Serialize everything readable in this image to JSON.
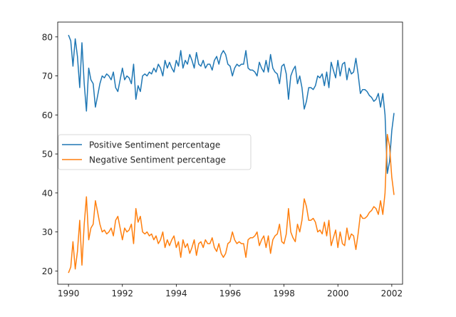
{
  "chart_data": {
    "type": "line",
    "title": "",
    "xlabel": "",
    "ylabel": "",
    "xlim": [
      1989.6,
      2002.4
    ],
    "ylim": [
      16.6,
      83.8
    ],
    "x_ticks": [
      "1990",
      "1992",
      "1994",
      "1996",
      "1998",
      "2000",
      "2002"
    ],
    "y_ticks": [
      "20",
      "30",
      "40",
      "50",
      "60",
      "70",
      "80"
    ],
    "grid": false,
    "legend_placement": "center-left",
    "x": [
      "1990-01",
      "1990-02",
      "1990-03",
      "1990-04",
      "1990-05",
      "1990-06",
      "1990-07",
      "1990-08",
      "1990-09",
      "1990-10",
      "1990-11",
      "1990-12",
      "1991-01",
      "1991-02",
      "1991-03",
      "1991-04",
      "1991-05",
      "1991-06",
      "1991-07",
      "1991-08",
      "1991-09",
      "1991-10",
      "1991-11",
      "1991-12",
      "1992-01",
      "1992-02",
      "1992-03",
      "1992-04",
      "1992-05",
      "1992-06",
      "1992-07",
      "1992-08",
      "1992-09",
      "1992-10",
      "1992-11",
      "1992-12",
      "1993-01",
      "1993-02",
      "1993-03",
      "1993-04",
      "1993-05",
      "1993-06",
      "1993-07",
      "1993-08",
      "1993-09",
      "1993-10",
      "1993-11",
      "1993-12",
      "1994-01",
      "1994-02",
      "1994-03",
      "1994-04",
      "1994-05",
      "1994-06",
      "1994-07",
      "1994-08",
      "1994-09",
      "1994-10",
      "1994-11",
      "1994-12",
      "1995-01",
      "1995-02",
      "1995-03",
      "1995-04",
      "1995-05",
      "1995-06",
      "1995-07",
      "1995-08",
      "1995-09",
      "1995-10",
      "1995-11",
      "1995-12",
      "1996-01",
      "1996-02",
      "1996-03",
      "1996-04",
      "1996-05",
      "1996-06",
      "1996-07",
      "1996-08",
      "1996-09",
      "1996-10",
      "1996-11",
      "1996-12",
      "1997-01",
      "1997-02",
      "1997-03",
      "1997-04",
      "1997-05",
      "1997-06",
      "1997-07",
      "1997-08",
      "1997-09",
      "1997-10",
      "1997-11",
      "1997-12",
      "1998-01",
      "1998-02",
      "1998-03",
      "1998-04",
      "1998-05",
      "1998-06",
      "1998-07",
      "1998-08",
      "1998-09",
      "1998-10",
      "1998-11",
      "1998-12",
      "1999-01",
      "1999-02",
      "1999-03",
      "1999-04",
      "1999-05",
      "1999-06",
      "1999-07",
      "1999-08",
      "1999-09",
      "1999-10",
      "1999-11",
      "1999-12",
      "2000-01",
      "2000-02",
      "2000-03",
      "2000-04",
      "2000-05",
      "2000-06",
      "2000-07",
      "2000-08",
      "2000-09",
      "2000-10",
      "2000-11",
      "2000-12",
      "2001-01",
      "2001-02",
      "2001-03",
      "2001-04",
      "2001-05",
      "2001-06",
      "2001-07",
      "2001-08",
      "2001-09",
      "2001-10",
      "2001-11",
      "2001-12",
      "2002-01",
      "2002-02"
    ],
    "series": [
      {
        "name": "Positive Sentiment percentage",
        "color": "#1f77b4",
        "values": [
          80.5,
          79,
          72.5,
          79.5,
          75,
          67,
          78.5,
          68,
          61,
          72,
          69,
          68,
          62,
          65,
          68,
          70,
          69.5,
          70.5,
          70,
          69,
          71,
          67,
          66,
          69,
          72,
          69,
          70,
          69.5,
          68,
          73,
          64,
          67.5,
          66,
          70,
          70.5,
          70,
          71,
          70.5,
          72,
          71,
          73,
          72,
          70,
          74,
          72,
          73.5,
          72,
          71,
          74,
          72.5,
          76.5,
          72,
          74,
          73,
          75.5,
          74,
          72,
          76,
          73,
          72.5,
          74,
          72,
          73,
          73,
          71.5,
          74,
          75,
          73,
          75.5,
          76.5,
          75.5,
          73,
          72.5,
          70,
          72,
          73,
          72.5,
          73,
          73,
          76.5,
          72,
          71.5,
          71.5,
          71,
          70,
          73.5,
          72,
          71,
          74,
          71,
          75.5,
          72,
          71,
          70.5,
          68,
          72.5,
          73,
          70.5,
          64,
          70,
          71.5,
          72.5,
          68,
          70,
          67,
          61.5,
          63.5,
          67,
          67,
          66.5,
          67.5,
          70,
          69.5,
          70.5,
          67.5,
          71,
          67,
          73.5,
          71.5,
          69.5,
          74,
          70,
          73,
          73.5,
          69,
          72,
          70.5,
          71,
          74.5,
          70.5,
          65.5,
          66.5,
          66.5,
          66,
          65,
          64.5,
          63.5,
          64,
          65.5,
          62,
          65.5,
          60,
          45,
          48,
          56,
          60.5
        ]
      },
      {
        "name": "Negative Sentiment percentage",
        "color": "#ff7f0e",
        "values": [
          19.5,
          21,
          27.5,
          20.5,
          25,
          33,
          21.5,
          32,
          39,
          28,
          31,
          32,
          38,
          35,
          32,
          30,
          30.5,
          29.5,
          30,
          31,
          29,
          33,
          34,
          31,
          28,
          31,
          30,
          30.5,
          32,
          27,
          36,
          32.5,
          34,
          30,
          29.5,
          30,
          29,
          29.5,
          28,
          29,
          27,
          28,
          30,
          26,
          28,
          26.5,
          28,
          29,
          26,
          27.5,
          23.5,
          28,
          26,
          27,
          24.5,
          26,
          28,
          24,
          27,
          27.5,
          26,
          28,
          27,
          27,
          28.5,
          26,
          25,
          27,
          24.5,
          23.5,
          24.5,
          27,
          27.5,
          30,
          28,
          27,
          27.5,
          27,
          27,
          23.5,
          28,
          28.5,
          28.5,
          29,
          30,
          26.5,
          28,
          29,
          26,
          29,
          24.5,
          28,
          29,
          29.5,
          32,
          27.5,
          27,
          29.5,
          36,
          30,
          28.5,
          27.5,
          32,
          30,
          33,
          38.5,
          36.5,
          33,
          33,
          33.5,
          32.5,
          30,
          30.5,
          29.5,
          32.5,
          29,
          33,
          26.5,
          28.5,
          30.5,
          26,
          30,
          27,
          26.5,
          31,
          28,
          29.5,
          29,
          25.5,
          29.5,
          34.5,
          33.5,
          33.5,
          34,
          35,
          35.5,
          36.5,
          36,
          34.5,
          38,
          34.5,
          40,
          55,
          52,
          44,
          39.5
        ]
      }
    ]
  }
}
